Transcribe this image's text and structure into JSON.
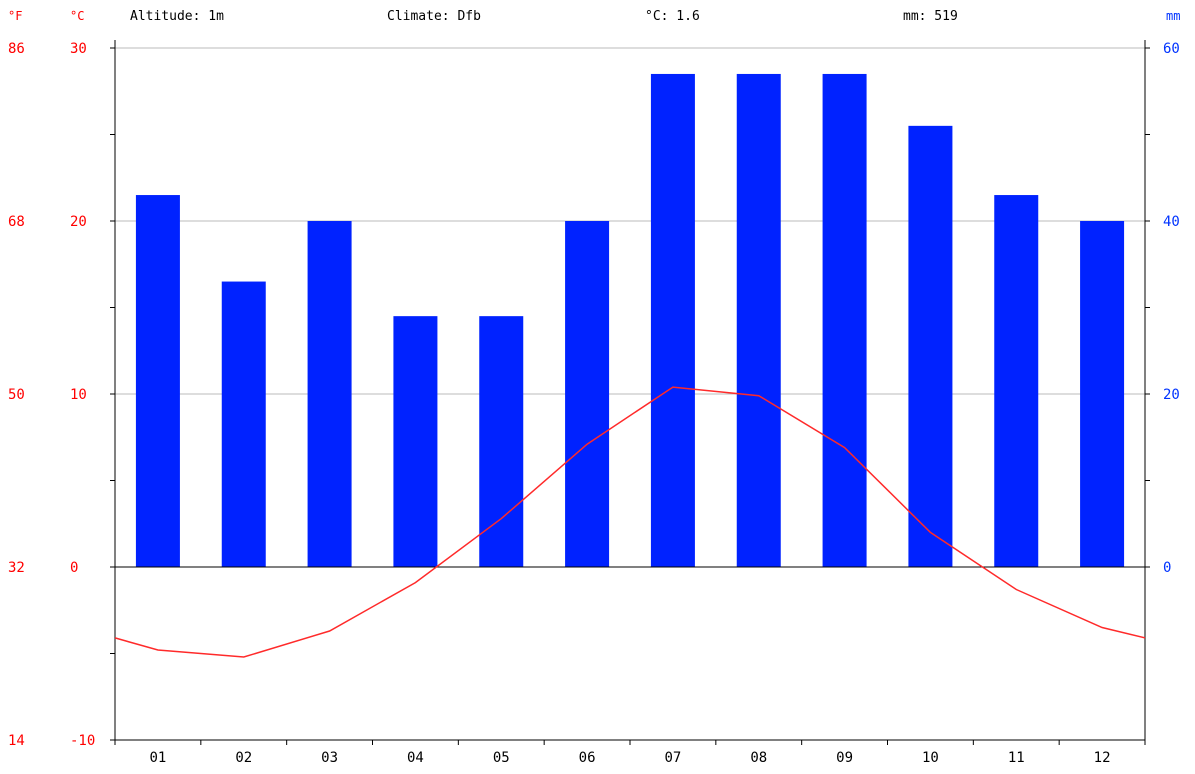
{
  "header": {
    "unit_f": "°F",
    "unit_c": "°C",
    "altitude": "Altitude: 1m",
    "climate": "Climate: Dfb",
    "mean_temp": "°C: 1.6",
    "total_precip": "mm: 519",
    "unit_mm": "mm"
  },
  "colors": {
    "precip_bar": "#0022ff",
    "temp_line": "#ff2a2a",
    "left_axis_text": "#ff0000",
    "right_axis_text": "#0033ff",
    "gridline": "#bbbbbb"
  },
  "chart_data": {
    "type": "bar",
    "categories": [
      "01",
      "02",
      "03",
      "04",
      "05",
      "06",
      "07",
      "08",
      "09",
      "10",
      "11",
      "12"
    ],
    "series": [
      {
        "type": "bar",
        "axis": "right",
        "unit": "mm",
        "values": [
          43,
          33,
          40,
          29,
          29,
          40,
          57,
          57,
          57,
          51,
          43,
          40
        ]
      },
      {
        "type": "line",
        "axis": "left",
        "unit": "°C",
        "values": [
          -4.8,
          -5.2,
          -3.7,
          -0.9,
          2.8,
          7.1,
          10.4,
          9.9,
          6.9,
          2.0,
          -1.3,
          -3.5
        ],
        "edge_values": [
          -4.1,
          -4.1
        ]
      }
    ],
    "y_left": {
      "label": "°C",
      "ylim": [
        -10,
        30
      ],
      "ticks": [
        "-10",
        "0",
        "10",
        "20",
        "30"
      ],
      "fahrenheit_ticks": [
        "14",
        "32",
        "50",
        "68",
        "86"
      ],
      "fahrenheit_label": "°F"
    },
    "y_right": {
      "label": "mm",
      "ylim": [
        -20,
        60
      ],
      "ticks": [
        "0",
        "20",
        "40",
        "60"
      ]
    },
    "grid": true
  }
}
